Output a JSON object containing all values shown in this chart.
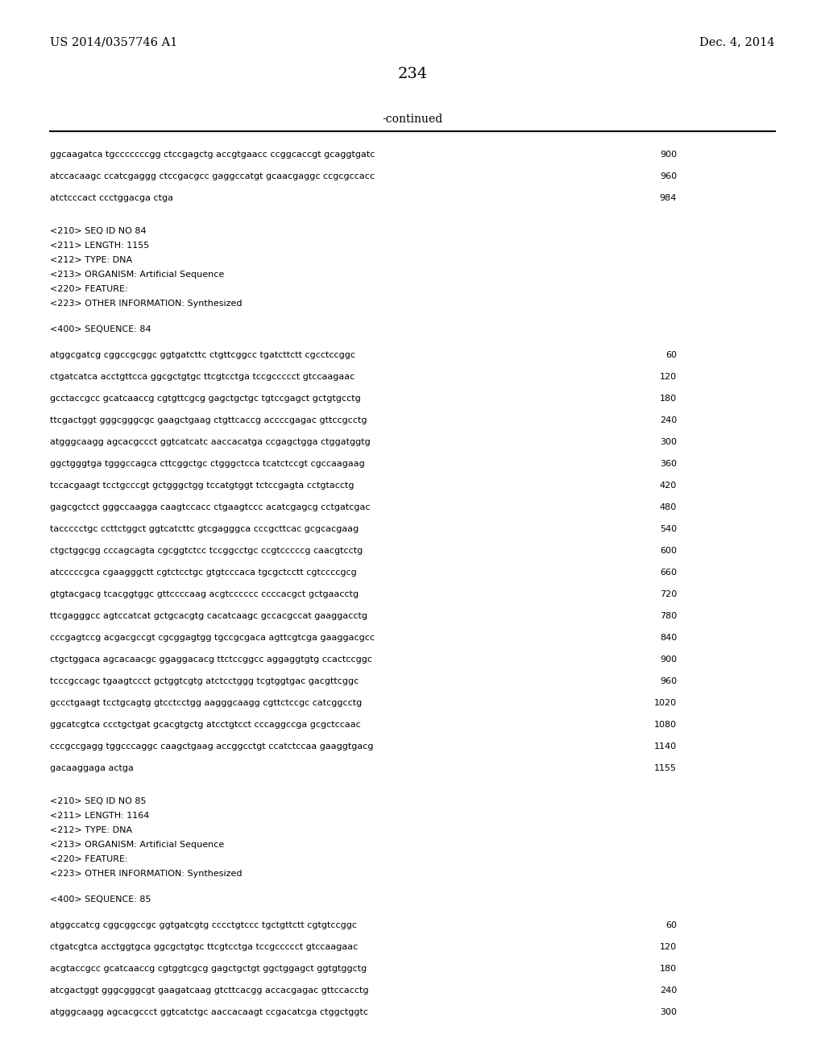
{
  "header_left": "US 2014/0357746 A1",
  "header_right": "Dec. 4, 2014",
  "page_number": "234",
  "continued_text": "-continued",
  "background_color": "#ffffff",
  "text_color": "#000000",
  "content": [
    {
      "type": "seq",
      "text": "ggcaagatca tgcccccccgg ctccgagctg accgtgaacc ccggcaccgt gcaggtgatc",
      "num": "900"
    },
    {
      "type": "seq",
      "text": "atccacaagc ccatcgaggg ctccgacgcc gaggccatgt gcaacgaggc ccgcgccacc",
      "num": "960"
    },
    {
      "type": "seq",
      "text": "atctcccact ccctggacga ctga",
      "num": "984"
    },
    {
      "type": "blank"
    },
    {
      "type": "meta",
      "text": "<210> SEQ ID NO 84"
    },
    {
      "type": "meta",
      "text": "<211> LENGTH: 1155"
    },
    {
      "type": "meta",
      "text": "<212> TYPE: DNA"
    },
    {
      "type": "meta",
      "text": "<213> ORGANISM: Artificial Sequence"
    },
    {
      "type": "meta",
      "text": "<220> FEATURE:"
    },
    {
      "type": "meta",
      "text": "<223> OTHER INFORMATION: Synthesized"
    },
    {
      "type": "blank"
    },
    {
      "type": "meta",
      "text": "<400> SEQUENCE: 84"
    },
    {
      "type": "blank"
    },
    {
      "type": "seq",
      "text": "atggcgatcg cggccgcggc ggtgatcttc ctgttcggcc tgatcttctt cgcctccggc",
      "num": "60"
    },
    {
      "type": "seq",
      "text": "ctgatcatca acctgttcca ggcgctgtgc ttcgtcctga tccgccccct gtccaagaac",
      "num": "120"
    },
    {
      "type": "seq",
      "text": "gcctaccgcc gcatcaaccg cgtgttcgcg gagctgctgc tgtccgagct gctgtgcctg",
      "num": "180"
    },
    {
      "type": "seq",
      "text": "ttcgactggt gggcgggcgc gaagctgaag ctgttcaccg accccgagac gttccgcctg",
      "num": "240"
    },
    {
      "type": "seq",
      "text": "atgggcaagg agcacgccct ggtcatcatc aaccacatga ccgagctgga ctggatggtg",
      "num": "300"
    },
    {
      "type": "seq",
      "text": "ggctgggtga tgggccagca cttcggctgc ctgggctcca tcatctccgt cgccaagaag",
      "num": "360"
    },
    {
      "type": "seq",
      "text": "tccacgaagt tcctgcccgt gctgggctgg tccatgtggt tctccgagta cctgtacctg",
      "num": "420"
    },
    {
      "type": "seq",
      "text": "gagcgctcct gggccaagga caagtccacc ctgaagtccc acatcgagcg cctgatcgac",
      "num": "480"
    },
    {
      "type": "seq",
      "text": "taccccctgc ccttctggct ggtcatcttc gtcgagggca cccgcttcac gcgcacgaag",
      "num": "540"
    },
    {
      "type": "seq",
      "text": "ctgctggcgg cccagcagta cgcggtctcc tccggcctgc ccgtcccccg caacgtcctg",
      "num": "600"
    },
    {
      "type": "seq",
      "text": "atcccccgca cgaagggctt cgtctcctgc gtgtcccaca tgcgctcctt cgtccccgcg",
      "num": "660"
    },
    {
      "type": "seq",
      "text": "gtgtacgacg tcacggtggc gttccccaag acgtcccccc ccccacgct gctgaacctg",
      "num": "720"
    },
    {
      "type": "seq",
      "text": "ttcgagggcc agtccatcat gctgcacgtg cacatcaagc gccacgccat gaaggacctg",
      "num": "780"
    },
    {
      "type": "seq",
      "text": "cccgagtccg acgacgccgt cgcggagtgg tgccgcgaca agttcgtcga gaaggacgcc",
      "num": "840"
    },
    {
      "type": "seq",
      "text": "ctgctggaca agcacaacgc ggaggacacg ttctccggcc aggaggtgtg ccactccggc",
      "num": "900"
    },
    {
      "type": "seq",
      "text": "tcccgccagc tgaagtccct gctggtcgtg atctcctggg tcgtggtgac gacgttcggc",
      "num": "960"
    },
    {
      "type": "seq",
      "text": "gccctgaagt tcctgcagtg gtcctcctgg aagggcaagg cgttctccgc catcggcctg",
      "num": "1020"
    },
    {
      "type": "seq",
      "text": "ggcatcgtca ccctgctgat gcacgtgctg atcctgtcct cccaggccga gcgctccaac",
      "num": "1080"
    },
    {
      "type": "seq",
      "text": "cccgccgagg tggcccaggc caagctgaag accggcctgt ccatctccaa gaaggtgacg",
      "num": "1140"
    },
    {
      "type": "seq",
      "text": "gacaaggaga actga",
      "num": "1155"
    },
    {
      "type": "blank"
    },
    {
      "type": "meta",
      "text": "<210> SEQ ID NO 85"
    },
    {
      "type": "meta",
      "text": "<211> LENGTH: 1164"
    },
    {
      "type": "meta",
      "text": "<212> TYPE: DNA"
    },
    {
      "type": "meta",
      "text": "<213> ORGANISM: Artificial Sequence"
    },
    {
      "type": "meta",
      "text": "<220> FEATURE:"
    },
    {
      "type": "meta",
      "text": "<223> OTHER INFORMATION: Synthesized"
    },
    {
      "type": "blank"
    },
    {
      "type": "meta",
      "text": "<400> SEQUENCE: 85"
    },
    {
      "type": "blank"
    },
    {
      "type": "seq",
      "text": "atggccatcg cggcggccgc ggtgatcgtg cccctgtccc tgctgttctt cgtgtccggc",
      "num": "60"
    },
    {
      "type": "seq",
      "text": "ctgatcgtca acctggtgca ggcgctgtgc ttcgtcctga tccgccccct gtccaagaac",
      "num": "120"
    },
    {
      "type": "seq",
      "text": "acgtaccgcc gcatcaaccg cgtggtcgcg gagctgctgt ggctggagct ggtgtggctg",
      "num": "180"
    },
    {
      "type": "seq",
      "text": "atcgactggt gggcgggcgt gaagatcaag gtcttcacgg accacgagac gttccacctg",
      "num": "240"
    },
    {
      "type": "seq",
      "text": "atgggcaagg agcacgccct ggtcatctgc aaccacaagt ccgacatcga ctggctggtc",
      "num": "300"
    }
  ]
}
